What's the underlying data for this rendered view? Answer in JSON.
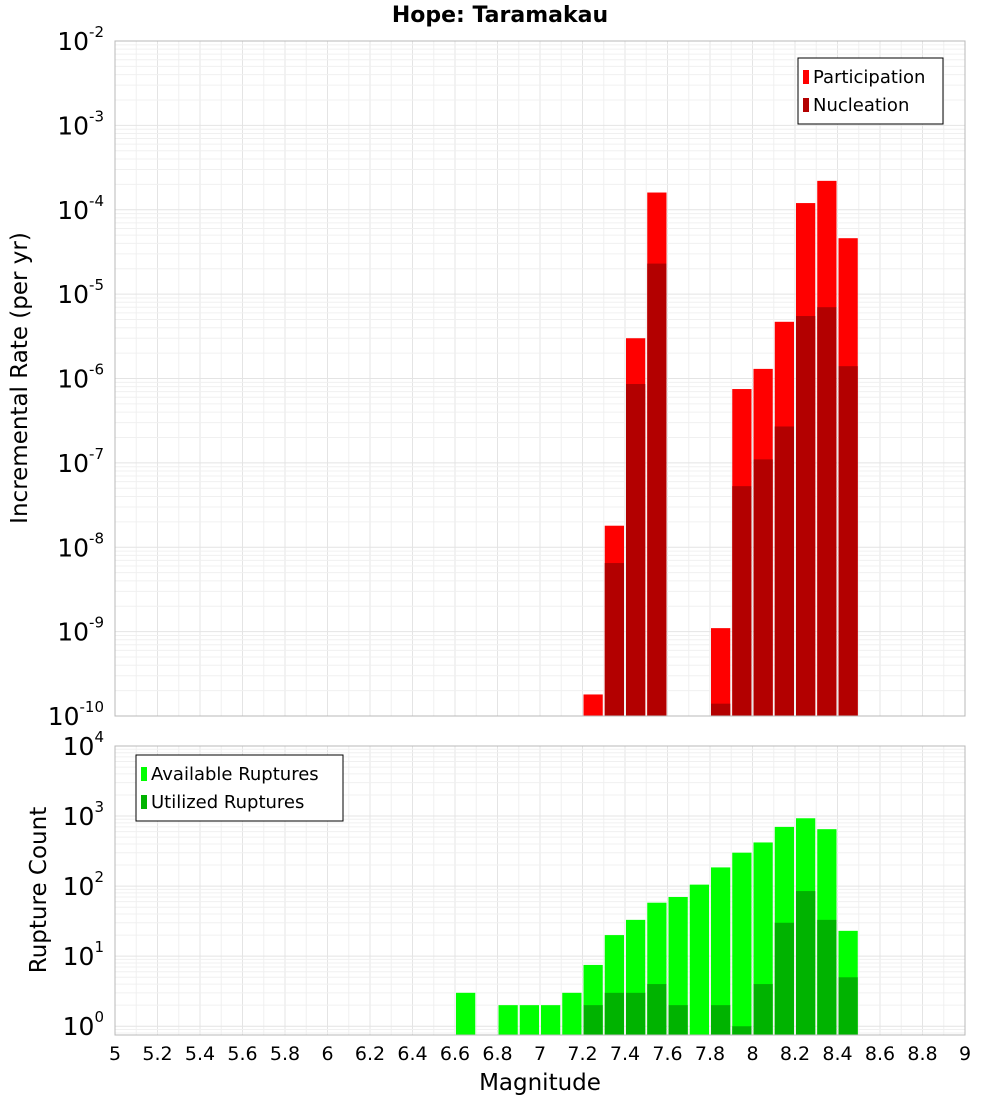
{
  "chart_data": [
    {
      "type": "bar",
      "title": "Hope: Taramakau",
      "xlabel": "Magnitude",
      "ylabel": "Incremental Rate (per yr)",
      "yscale": "log",
      "ylim": [
        1e-10,
        0.01
      ],
      "xlim": [
        5,
        9
      ],
      "bin_width": 0.1,
      "legend_position": "top-right",
      "grid": true,
      "series": [
        {
          "name": "Participation",
          "color": "#ff0000",
          "x": [
            7.25,
            7.35,
            7.45,
            7.55,
            7.85,
            7.95,
            8.05,
            8.15,
            8.25,
            8.35,
            8.45
          ],
          "values": [
            1.8e-10,
            1.8e-08,
            3e-06,
            0.00016,
            1.1e-09,
            7.5e-07,
            1.3e-06,
            4.7e-06,
            0.00012,
            0.00022,
            4.6e-05
          ]
        },
        {
          "name": "Nucleation",
          "color": "#b30000",
          "x": [
            7.35,
            7.45,
            7.55,
            7.85,
            7.95,
            8.05,
            8.15,
            8.25,
            8.35,
            8.45
          ],
          "values": [
            6.5e-09,
            8.6e-07,
            2.3e-05,
            1.4e-10,
            5.3e-08,
            1.1e-07,
            2.7e-07,
            5.5e-06,
            7e-06,
            1.4e-06
          ]
        }
      ]
    },
    {
      "type": "bar",
      "xlabel": "Magnitude",
      "ylabel": "Rupture Count",
      "yscale": "log",
      "ylim": [
        0.75,
        10000
      ],
      "xlim": [
        5,
        9
      ],
      "bin_width": 0.1,
      "xticks": [
        "5",
        "5.2",
        "5.4",
        "5.6",
        "5.8",
        "6",
        "6.2",
        "6.4",
        "6.6",
        "6.8",
        "7",
        "7.2",
        "7.4",
        "7.6",
        "7.8",
        "8",
        "8.2",
        "8.4",
        "8.6",
        "8.8",
        "9"
      ],
      "legend_position": "top-left",
      "grid": true,
      "series": [
        {
          "name": "Available Ruptures",
          "color": "#00ff00",
          "x": [
            6.65,
            6.85,
            6.95,
            7.05,
            7.15,
            7.25,
            7.35,
            7.45,
            7.55,
            7.65,
            7.75,
            7.85,
            7.95,
            8.05,
            8.15,
            8.25,
            8.35,
            8.45
          ],
          "values": [
            3,
            2,
            2,
            2,
            3,
            7.5,
            20,
            33,
            58,
            70,
            105,
            185,
            300,
            420,
            700,
            930,
            650,
            23
          ]
        },
        {
          "name": "Utilized Ruptures",
          "color": "#00b300",
          "x": [
            7.25,
            7.35,
            7.45,
            7.55,
            7.65,
            7.85,
            7.95,
            8.05,
            8.15,
            8.25,
            8.35,
            8.45
          ],
          "values": [
            2,
            3,
            3,
            4,
            2,
            2,
            1,
            4,
            30,
            85,
            33,
            5
          ]
        }
      ]
    }
  ]
}
